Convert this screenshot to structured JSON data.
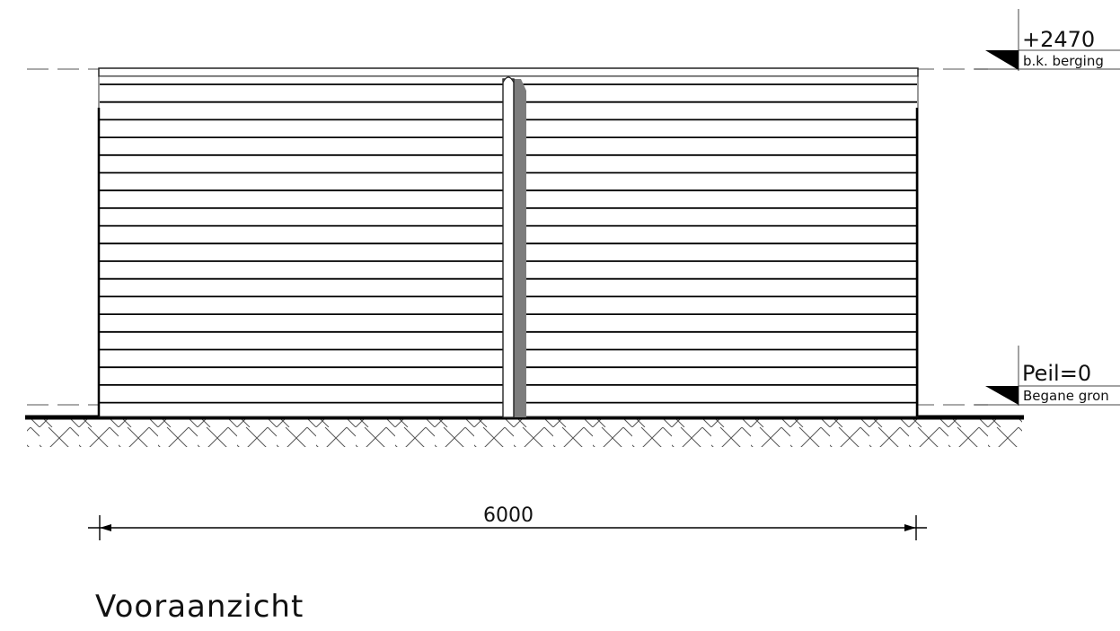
{
  "drawing": {
    "view_title": "Vooraanzicht",
    "dimension": {
      "value": "6000"
    },
    "levels": [
      {
        "value": "+2470",
        "description": "b.k. berging"
      },
      {
        "value": "Peil=0",
        "description": "Begane gron"
      }
    ]
  }
}
